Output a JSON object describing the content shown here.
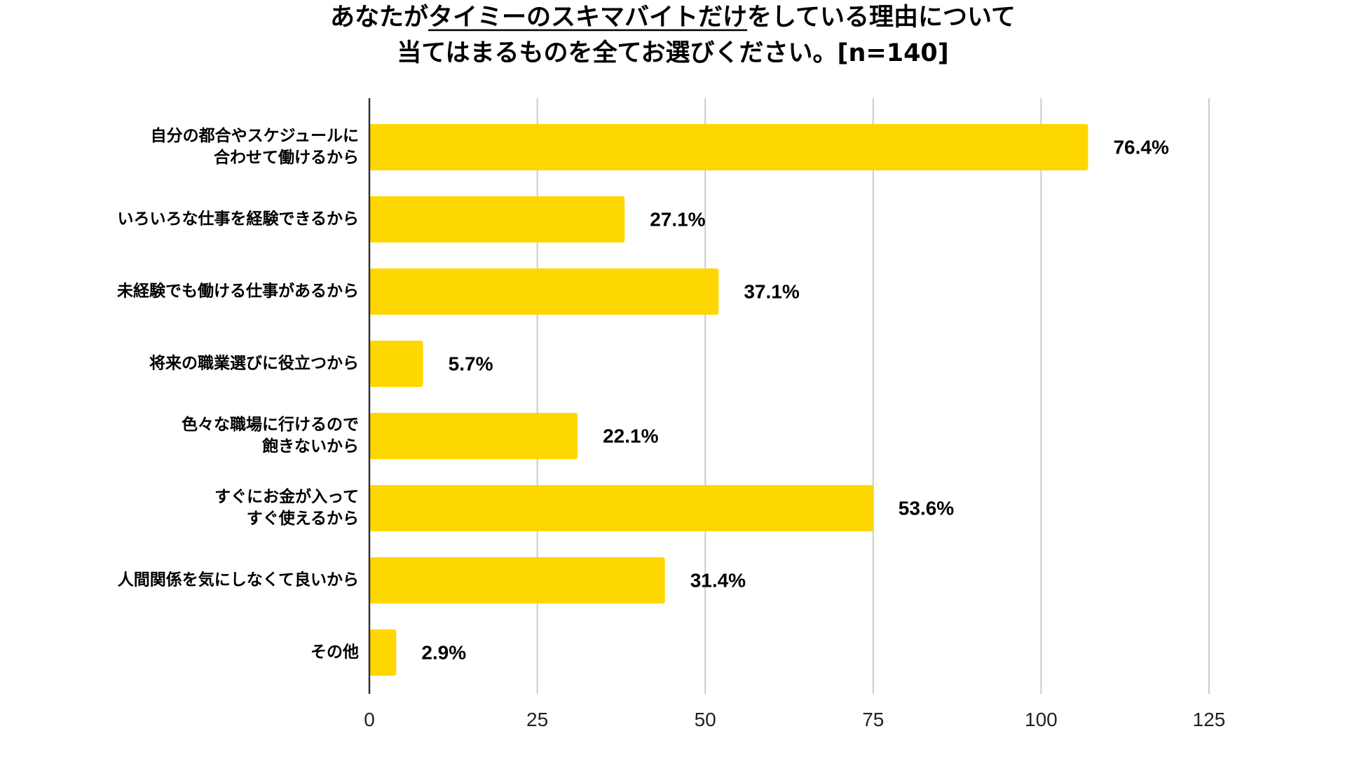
{
  "chart_data": {
    "type": "bar",
    "orientation": "horizontal",
    "title_lines": [
      "あなたがタイミーのスキマバイトだけをしている理由について",
      "当てはまるものを全てお選びください。[n=140]"
    ],
    "title_underlined_part": "タイミーのスキマバイトだけ",
    "categories": [
      [
        "自分の都合やスケジュールに",
        "合わせて働けるから"
      ],
      [
        "いろいろな仕事を経験できるから"
      ],
      [
        "未経験でも働ける仕事があるから"
      ],
      [
        "将来の職業選びに役立つから"
      ],
      [
        "色々な職場に行けるので",
        "飽きないから"
      ],
      [
        "すぐにお金が入って",
        "すぐ使えるから"
      ],
      [
        "人間関係を気にしなくて良いから"
      ],
      [
        "その他"
      ]
    ],
    "values": [
      107,
      38,
      52,
      8,
      31,
      75,
      44,
      4
    ],
    "data_labels": [
      "76.4%",
      "27.1%",
      "37.1%",
      "5.7%",
      "22.1%",
      "53.6%",
      "31.4%",
      "2.9%"
    ],
    "xlim": [
      0,
      125
    ],
    "xticks": [
      0,
      25,
      50,
      75,
      100,
      125
    ],
    "grid": true,
    "legend": "none",
    "bar_color": "#FFD700",
    "grid_color": "#cccccc",
    "axis_color": "#333333"
  }
}
